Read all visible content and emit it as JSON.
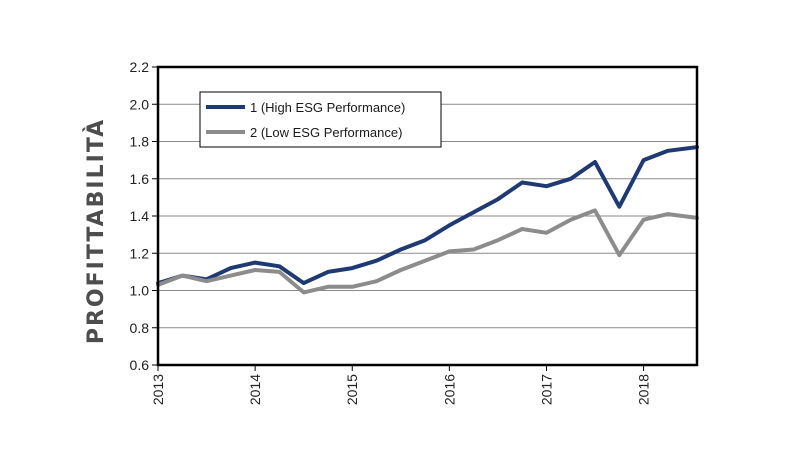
{
  "chart_data": {
    "type": "line",
    "ylabel": "PROFITTABILITÀ",
    "xlabel": "",
    "ylim": [
      0.6,
      2.2
    ],
    "yticks": [
      "0.6",
      "0.8",
      "1.0",
      "1.2",
      "1.4",
      "1.6",
      "1.8",
      "2.0",
      "2.2"
    ],
    "xlim": [
      2013.0,
      2018.55
    ],
    "xticks": [
      "2013",
      "2014",
      "2015",
      "2016",
      "2017",
      "2018"
    ],
    "grid": true,
    "legend_position": "top-left",
    "series": [
      {
        "name": "1 (High ESG Performance)",
        "color": "#1f3a73",
        "x": [
          2013.0,
          2013.25,
          2013.5,
          2013.75,
          2014.0,
          2014.25,
          2014.5,
          2014.75,
          2015.0,
          2015.25,
          2015.5,
          2015.75,
          2016.0,
          2016.25,
          2016.5,
          2016.75,
          2017.0,
          2017.25,
          2017.5,
          2017.75,
          2018.0,
          2018.25,
          2018.55
        ],
        "values": [
          1.04,
          1.08,
          1.06,
          1.12,
          1.15,
          1.13,
          1.04,
          1.1,
          1.12,
          1.16,
          1.22,
          1.27,
          1.35,
          1.42,
          1.49,
          1.58,
          1.56,
          1.6,
          1.69,
          1.45,
          1.7,
          1.75,
          1.77
        ]
      },
      {
        "name": "2 (Low ESG Performance)",
        "color": "#8c8c8c",
        "x": [
          2013.0,
          2013.25,
          2013.5,
          2013.75,
          2014.0,
          2014.25,
          2014.5,
          2014.75,
          2015.0,
          2015.25,
          2015.5,
          2015.75,
          2016.0,
          2016.25,
          2016.5,
          2016.75,
          2017.0,
          2017.25,
          2017.5,
          2017.75,
          2018.0,
          2018.25,
          2018.55
        ],
        "values": [
          1.03,
          1.08,
          1.05,
          1.08,
          1.11,
          1.1,
          0.99,
          1.02,
          1.02,
          1.05,
          1.11,
          1.16,
          1.21,
          1.22,
          1.27,
          1.33,
          1.31,
          1.38,
          1.43,
          1.19,
          1.38,
          1.41,
          1.39
        ]
      }
    ]
  }
}
